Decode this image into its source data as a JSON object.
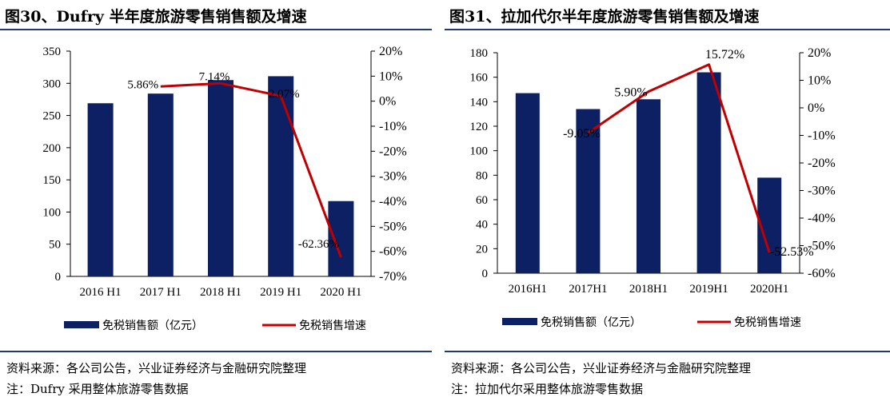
{
  "colors": {
    "bar": "#0d2064",
    "line": "#c00000",
    "rule": "#1f3c6e"
  },
  "left": {
    "title": "图30、Dufry 半年度旅游零售销售额及增速",
    "source": "资料来源：各公司公告，兴业证券经济与金融研究院整理",
    "note": "注：Dufry 采用整体旅游零售数据",
    "legend": {
      "bar": "免税销售额（亿元）",
      "line": "免税销售增速"
    }
  },
  "right": {
    "title": "图31、拉加代尔半年度旅游零售销售额及增速",
    "source": "资料来源：各公司公告，兴业证券经济与金融研究院整理",
    "note": "注：拉加代尔采用整体旅游零售数据",
    "legend": {
      "bar": "免税销售额（亿元）",
      "line": "免税销售增速"
    }
  },
  "chart_data": [
    {
      "type": "bar",
      "categories": [
        "2016 H1",
        "2017 H1",
        "2018 H1",
        "2019 H1",
        "2020 H1"
      ],
      "series": [
        {
          "name": "免税销售额（亿元）",
          "type": "bar",
          "axis": "left",
          "values": [
            269,
            284,
            305,
            311,
            117
          ]
        },
        {
          "name": "免税销售增速",
          "type": "line",
          "axis": "right",
          "values": [
            null,
            5.86,
            7.14,
            2.07,
            -62.36
          ],
          "labels": [
            "",
            "5.86%",
            "7.14%",
            "2.07%",
            "-62.36%"
          ]
        }
      ],
      "ylim": [
        0,
        350
      ],
      "yticks": [
        0,
        50,
        100,
        150,
        200,
        250,
        300,
        350
      ],
      "y2lim": [
        -70,
        20
      ],
      "y2ticks": [
        "-70%",
        "-60%",
        "-50%",
        "-40%",
        "-30%",
        "-20%",
        "-10%",
        "0%",
        "10%",
        "20%"
      ],
      "legend": "bottom"
    },
    {
      "type": "bar",
      "categories": [
        "2016H1",
        "2017H1",
        "2018H1",
        "2019H1",
        "2020H1"
      ],
      "series": [
        {
          "name": "免税销售额（亿元）",
          "type": "bar",
          "axis": "left",
          "values": [
            147,
            134,
            142,
            164,
            78
          ]
        },
        {
          "name": "免税销售增速",
          "type": "line",
          "axis": "right",
          "values": [
            null,
            -9.05,
            5.9,
            15.72,
            -52.53
          ],
          "labels": [
            "",
            "-9.05%",
            "5.90%",
            "15.72%",
            "-52.53%"
          ]
        }
      ],
      "ylim": [
        0,
        180
      ],
      "yticks": [
        0,
        20,
        40,
        60,
        80,
        100,
        120,
        140,
        160,
        180
      ],
      "y2lim": [
        -60,
        20
      ],
      "y2ticks": [
        "-60%",
        "-50%",
        "-40%",
        "-30%",
        "-20%",
        "-10%",
        "0%",
        "10%",
        "20%"
      ],
      "legend": "bottom"
    }
  ]
}
